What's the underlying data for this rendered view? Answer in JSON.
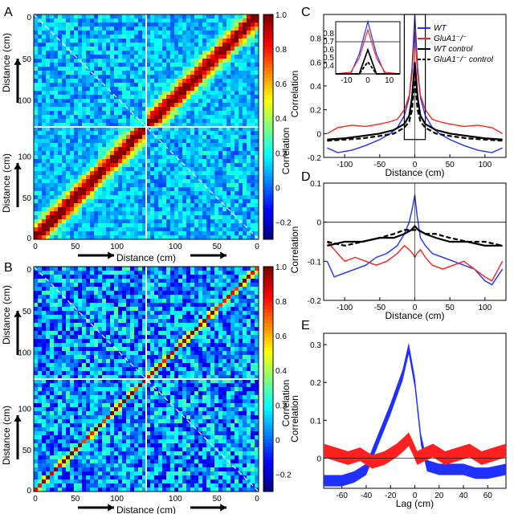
{
  "panel_labels": [
    "A",
    "B",
    "C",
    "D",
    "E"
  ],
  "chart_data": [
    {
      "id": "A",
      "type": "heatmap",
      "title": "",
      "xlabel": "Distance (cm)",
      "ylabel": "Distance (cm)",
      "colorbar_label": "Correlation",
      "colorbar_range": [
        -0.3,
        1.0
      ],
      "colorbar_ticks": [
        "1.0",
        "0.8",
        "0.6",
        "0.4",
        "0.2",
        "0",
        "−0.2"
      ],
      "x_tick_labels": [
        "0",
        "50",
        "100",
        "100",
        "50",
        "0"
      ],
      "y_tick_labels_top": [
        "0",
        "50",
        "100"
      ],
      "y_tick_labels_bottom": [
        "100",
        "50",
        "0"
      ],
      "quadrants": "2x2 blocks; strong diagonal band in top-right and bottom-left blocks; weak off-diagonal blocks",
      "diagonal_band_strength": 0.95,
      "background_level": 0.1
    },
    {
      "id": "B",
      "type": "heatmap",
      "title": "",
      "xlabel": "Distance (cm)",
      "ylabel": "Distance (cm)",
      "colorbar_label": "Correlation",
      "colorbar_range": [
        -0.3,
        1.0
      ],
      "colorbar_ticks": [
        "1.0",
        "0.8",
        "0.6",
        "0.4",
        "0.2",
        "0",
        "−0.2"
      ],
      "x_tick_labels": [
        "0",
        "50",
        "100",
        "100",
        "50",
        "0"
      ],
      "y_tick_labels_top": [
        "0",
        "50",
        "100"
      ],
      "y_tick_labels_bottom": [
        "100",
        "50",
        "0"
      ],
      "quadrants": "2x2 blocks; thin sharp diagonal in top-right and bottom-left blocks; noisy background",
      "diagonal_band_strength": 0.9,
      "background_level": 0.05
    },
    {
      "id": "C",
      "type": "line",
      "xlabel": "Distance (cm)",
      "ylabel": "Correlation",
      "xlim": [
        -130,
        130
      ],
      "ylim": [
        -0.2,
        1.0
      ],
      "x_ticks": [
        -100,
        -50,
        0,
        50,
        100
      ],
      "y_ticks": [
        -0.2,
        0,
        0.2,
        0.4,
        0.6,
        0.8
      ],
      "legend": [
        {
          "label": "WT",
          "color": "#2030ff",
          "style": "solid"
        },
        {
          "label": "GluA1⁻/⁻",
          "color": "#ff2020",
          "style": "solid"
        },
        {
          "label": "WT control",
          "color": "#000000",
          "style": "solid"
        },
        {
          "label": "GluA1⁻/⁻ control",
          "color": "#000000",
          "style": "dashed"
        }
      ],
      "series": [
        {
          "name": "WT",
          "x": [
            -125,
            -110,
            -90,
            -70,
            -50,
            -35,
            -25,
            -15,
            -8,
            -4,
            0,
            4,
            8,
            15,
            25,
            35,
            50,
            70,
            90,
            110,
            125
          ],
          "y": [
            -0.12,
            -0.16,
            -0.14,
            -0.1,
            -0.05,
            0.0,
            0.05,
            0.15,
            0.3,
            0.55,
            1.0,
            0.55,
            0.3,
            0.15,
            0.05,
            0.0,
            -0.05,
            -0.1,
            -0.14,
            -0.16,
            -0.12
          ]
        },
        {
          "name": "GluA1⁻/⁻",
          "x": [
            -125,
            -110,
            -90,
            -70,
            -50,
            -35,
            -25,
            -15,
            -8,
            -4,
            0,
            4,
            8,
            15,
            25,
            35,
            50,
            70,
            90,
            110,
            125
          ],
          "y": [
            0.0,
            0.05,
            0.07,
            0.06,
            0.08,
            0.1,
            0.12,
            0.2,
            0.32,
            0.5,
            0.85,
            0.5,
            0.32,
            0.2,
            0.12,
            0.1,
            0.08,
            0.06,
            0.07,
            0.05,
            0.0
          ]
        },
        {
          "name": "WT control",
          "x": [
            -125,
            -100,
            -75,
            -50,
            -30,
            -15,
            -8,
            -4,
            0,
            4,
            8,
            15,
            30,
            50,
            75,
            100,
            125
          ],
          "y": [
            -0.05,
            -0.04,
            -0.02,
            0.0,
            0.03,
            0.08,
            0.15,
            0.3,
            0.6,
            0.3,
            0.15,
            0.08,
            0.03,
            0.0,
            -0.02,
            -0.04,
            -0.05
          ]
        },
        {
          "name": "GluA1⁻/⁻ control",
          "x": [
            -125,
            -100,
            -75,
            -50,
            -30,
            -15,
            -8,
            -4,
            0,
            4,
            8,
            15,
            30,
            50,
            75,
            100,
            125
          ],
          "y": [
            -0.06,
            -0.05,
            -0.04,
            -0.02,
            0.0,
            0.05,
            0.1,
            0.2,
            0.45,
            0.2,
            0.1,
            0.05,
            0.0,
            -0.02,
            -0.04,
            -0.05,
            -0.06
          ]
        }
      ],
      "inset": {
        "xlim": [
          -15,
          15
        ],
        "ylim": [
          0.3,
          0.95
        ],
        "x_ticks": [
          -10,
          0,
          10
        ],
        "y_ticks": [
          0.4,
          0.5,
          0.6,
          0.7,
          0.8
        ],
        "hline": 0.7
      }
    },
    {
      "id": "D",
      "type": "line",
      "xlabel": "Distance (cm)",
      "ylabel": "Correlation",
      "xlim": [
        -130,
        130
      ],
      "ylim": [
        -0.2,
        0.1
      ],
      "x_ticks": [
        -100,
        -50,
        0,
        50,
        100
      ],
      "y_ticks": [
        -0.2,
        -0.1,
        0,
        0.1
      ],
      "series": [
        {
          "name": "WT",
          "x": [
            -125,
            -115,
            -100,
            -85,
            -70,
            -55,
            -40,
            -25,
            -15,
            -8,
            -3,
            0,
            3,
            8,
            15,
            25,
            40,
            55,
            70,
            85,
            100,
            110,
            125
          ],
          "y": [
            -0.1,
            -0.14,
            -0.13,
            -0.12,
            -0.11,
            -0.09,
            -0.08,
            -0.06,
            -0.03,
            0.0,
            0.04,
            0.07,
            0.02,
            -0.04,
            -0.06,
            -0.08,
            -0.09,
            -0.1,
            -0.11,
            -0.12,
            -0.15,
            -0.16,
            -0.12
          ]
        },
        {
          "name": "GluA1⁻/⁻",
          "x": [
            -125,
            -115,
            -100,
            -85,
            -70,
            -55,
            -40,
            -25,
            -15,
            -8,
            -3,
            0,
            3,
            8,
            15,
            25,
            40,
            55,
            70,
            85,
            100,
            110,
            125
          ],
          "y": [
            -0.05,
            -0.07,
            -0.1,
            -0.09,
            -0.1,
            -0.11,
            -0.1,
            -0.08,
            -0.06,
            -0.07,
            -0.08,
            -0.09,
            -0.08,
            -0.07,
            -0.09,
            -0.11,
            -0.12,
            -0.11,
            -0.1,
            -0.12,
            -0.14,
            -0.15,
            -0.1
          ]
        },
        {
          "name": "WT control",
          "x": [
            -125,
            -100,
            -75,
            -50,
            -30,
            -15,
            -5,
            0,
            5,
            15,
            30,
            50,
            75,
            100,
            125
          ],
          "y": [
            -0.06,
            -0.05,
            -0.05,
            -0.04,
            -0.04,
            -0.03,
            -0.02,
            -0.01,
            -0.02,
            -0.03,
            -0.04,
            -0.05,
            -0.05,
            -0.06,
            -0.06
          ]
        },
        {
          "name": "GluA1⁻/⁻ control",
          "x": [
            -125,
            -100,
            -75,
            -50,
            -30,
            -15,
            -5,
            0,
            5,
            15,
            30,
            50,
            75,
            100,
            125
          ],
          "y": [
            -0.05,
            -0.06,
            -0.05,
            -0.04,
            -0.03,
            -0.02,
            -0.02,
            -0.02,
            -0.02,
            -0.03,
            -0.03,
            -0.04,
            -0.05,
            -0.05,
            -0.06
          ]
        }
      ]
    },
    {
      "id": "E",
      "type": "area",
      "xlabel": "Lag (cm)",
      "ylabel": "Correlation",
      "xlim": [
        -75,
        75
      ],
      "ylim": [
        -0.08,
        0.33
      ],
      "x_ticks": [
        -60,
        -40,
        -20,
        0,
        20,
        40,
        60
      ],
      "y_ticks": [
        0,
        0.1,
        0.2,
        0.3
      ],
      "series": [
        {
          "name": "WT",
          "x": [
            -75,
            -60,
            -50,
            -40,
            -30,
            -20,
            -10,
            -5,
            0,
            5,
            10,
            20,
            30,
            40,
            50,
            60,
            75
          ],
          "y": [
            -0.06,
            -0.06,
            -0.05,
            -0.03,
            0.05,
            0.13,
            0.22,
            0.29,
            0.2,
            0.05,
            -0.02,
            -0.03,
            -0.03,
            -0.03,
            -0.04,
            -0.04,
            -0.03
          ],
          "band": 0.015
        },
        {
          "name": "GluA1⁻/⁻",
          "x": [
            -75,
            -65,
            -55,
            -45,
            -35,
            -25,
            -15,
            -8,
            -5,
            -2,
            2,
            8,
            15,
            25,
            35,
            45,
            55,
            65,
            75
          ],
          "y": [
            0.02,
            0.01,
            0.0,
            0.01,
            -0.01,
            0.0,
            0.02,
            0.04,
            0.05,
            0.03,
            0.0,
            0.01,
            0.02,
            0.0,
            0.01,
            0.02,
            0.0,
            0.01,
            0.02
          ],
          "band": 0.018
        }
      ]
    }
  ]
}
